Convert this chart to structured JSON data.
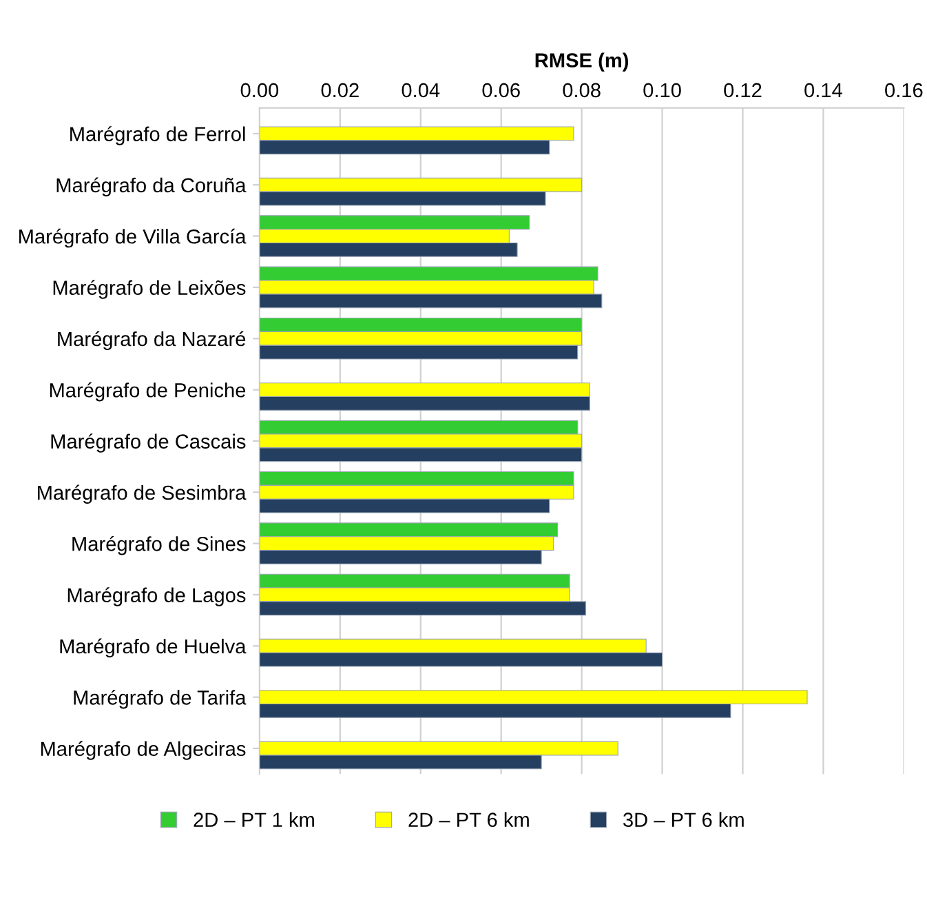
{
  "chart_data": {
    "type": "bar",
    "orientation": "horizontal",
    "xlabel": "RMSE (m)",
    "categories": [
      "Marégrafo de Ferrol",
      "Marégrafo da Coruña",
      "Marégrafo de Villa García",
      "Marégrafo de Leixões",
      "Marégrafo da Nazaré",
      "Marégrafo de Peniche",
      "Marégrafo de Cascais",
      "Marégrafo de Sesimbra",
      "Marégrafo de Sines",
      "Marégrafo de Lagos",
      "Marégrafo de Huelva",
      "Marégrafo de Tarifa",
      "Marégrafo de Algeciras"
    ],
    "series": [
      {
        "name": "2D – PT 1 km",
        "color": "#33cc33",
        "values": [
          null,
          null,
          0.067,
          0.084,
          0.08,
          null,
          0.079,
          0.078,
          0.074,
          0.077,
          null,
          null,
          null
        ]
      },
      {
        "name": "2D – PT 6 km",
        "color": "#ffff00",
        "values": [
          0.078,
          0.08,
          0.062,
          0.083,
          0.08,
          0.082,
          0.08,
          0.078,
          0.073,
          0.077,
          0.096,
          0.136,
          0.089
        ]
      },
      {
        "name": "3D – PT 6 km",
        "color": "#243f60",
        "values": [
          0.072,
          0.071,
          0.064,
          0.085,
          0.079,
          0.082,
          0.08,
          0.072,
          0.07,
          0.081,
          0.1,
          0.117,
          0.07
        ]
      }
    ],
    "xlim": [
      0,
      0.16
    ],
    "xticks": [
      {
        "value": 0,
        "label": "0.00"
      },
      {
        "value": 0.02,
        "label": "0.02"
      },
      {
        "value": 0.04,
        "label": "0.04"
      },
      {
        "value": 0.06,
        "label": "0.06"
      },
      {
        "value": 0.08,
        "label": "0.08"
      },
      {
        "value": 0.1,
        "label": "0.10"
      },
      {
        "value": 0.12,
        "label": "0.12"
      },
      {
        "value": 0.14,
        "label": "0.14"
      },
      {
        "value": 0.16,
        "label": "0.16"
      }
    ],
    "grid": "x",
    "legend": "bottom"
  }
}
